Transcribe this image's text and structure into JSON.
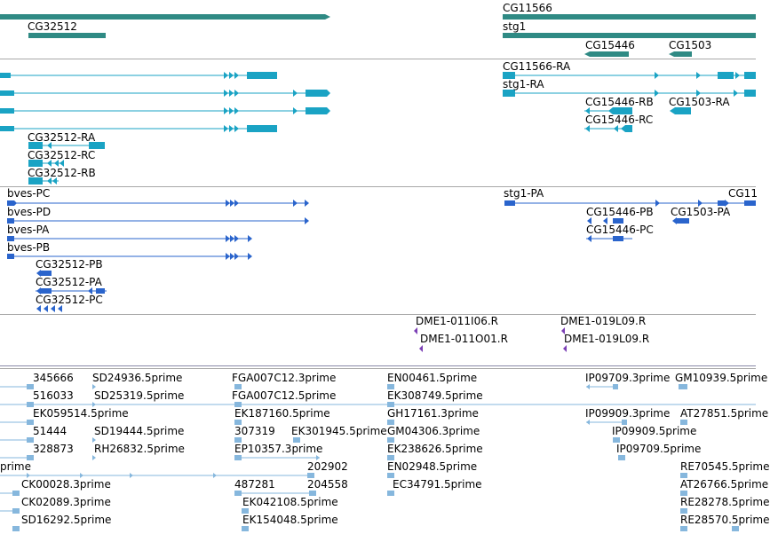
{
  "colors": {
    "gene": "#2f8a84",
    "transcript": "#1aa3c4",
    "translation": "#2a64cc",
    "primer": "#7b3fb5",
    "est": "#86b7dd",
    "divider": "#a8a8a8"
  },
  "tracks": {
    "genes": {
      "labels": [
        "CG32512",
        "CG11566",
        "stg1",
        "CG15446",
        "CG1503"
      ]
    },
    "transcripts": {
      "labels": [
        "CG11566-RA",
        "stg1-RA",
        "CG15446-RB",
        "CG1503-RA",
        "CG15446-RC",
        "CG32512-RA",
        "CG32512-RC",
        "CG32512-RB"
      ]
    },
    "translations": {
      "labels": [
        "bves-PC",
        "stg1-PA",
        "CG11",
        "CG15446-PB",
        "CG1503-PA",
        "bves-PD",
        "bves-PA",
        "CG15446-PC",
        "bves-PB",
        "CG32512-PB",
        "CG32512-PA",
        "CG32512-PC"
      ]
    },
    "primers": {
      "labels": [
        "DME1-011I06.R",
        "DME1-019L09.R",
        "DME1-011O01.R",
        "DME1-019L09.R"
      ]
    },
    "ests": {
      "labels": [
        "345666",
        "SD24936.5prime",
        "FGA007C12.3prime",
        "EN00461.5prime",
        "IP09709.3prime",
        "GM10939.5prime",
        "516033",
        "SD25319.5prime",
        "FGA007C12.5prime",
        "EK308749.5prime",
        "EK059514.5prime",
        "EK187160.5prime",
        "GH17161.3prime",
        "IP09909.3prime",
        "AT27851.5prime",
        "51444",
        "SD19444.5prime",
        "307319",
        "EK301945.5prime",
        "GM04306.3prime",
        "IP09909.5prime",
        "328873",
        "RH26832.5prime",
        "EP10357.3prime",
        "EK238626.5prime",
        "IP09709.5prime",
        "prime",
        "202902",
        "EN02948.5prime",
        "RE70545.5prime",
        "CK00028.3prime",
        "487281",
        "204558",
        "EC34791.5prime",
        "AT26766.5prime",
        "CK02089.3prime",
        "EK042108.5prime",
        "RE28278.5prime",
        "SD16292.5prime",
        "EK154048.5prime",
        "RE28570.5prime"
      ]
    }
  }
}
